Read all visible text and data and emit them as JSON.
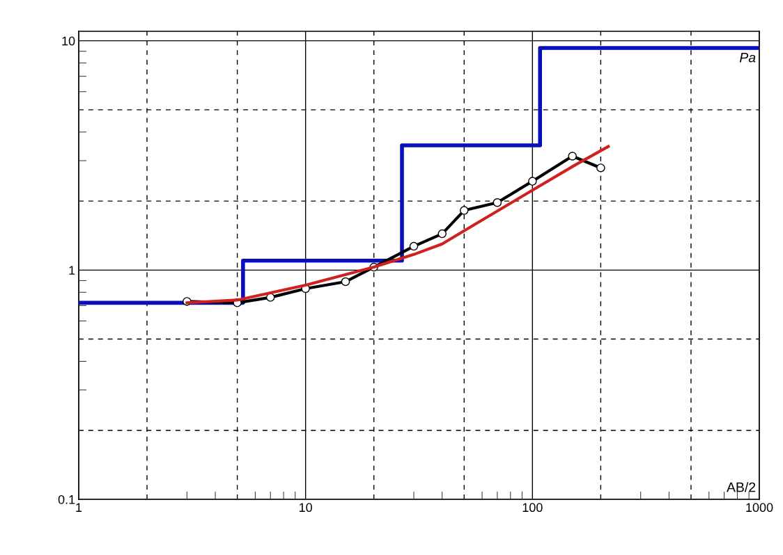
{
  "chart_data": {
    "type": "line",
    "xlabel": "AB/2",
    "ylabel": "Pa",
    "log": "xy",
    "grid": true,
    "xlim": [
      1,
      1000
    ],
    "xticks": [
      1,
      {
        "value": 2,
        "label": null
      },
      {
        "value": 5,
        "label": null
      },
      10,
      {
        "value": 20,
        "label": null
      },
      {
        "value": 50,
        "label": null
      },
      100,
      {
        "value": 200,
        "label": null
      },
      {
        "value": 500,
        "label": null
      },
      1000
    ],
    "ylim": [
      0.1,
      11
    ],
    "yticks": [
      0.1,
      {
        "value": 0.2,
        "label": null
      },
      {
        "value": 0.5,
        "label": null
      },
      1,
      {
        "value": 2,
        "label": null
      },
      {
        "value": 5,
        "label": null
      },
      10
    ],
    "series": [
      {
        "type": "step",
        "color": "#0a10b8",
        "x": [
          1,
          5.3,
          26.6,
          108,
          1000
        ],
        "values": [
          0.72,
          1.1,
          3.5,
          9.3,
          9.3
        ]
      },
      {
        "color": "#000000",
        "marker": "circle",
        "x": [
          3,
          5,
          7,
          10,
          15,
          20,
          30,
          40,
          50,
          70,
          100,
          150,
          200
        ],
        "values": [
          0.73,
          0.72,
          0.76,
          0.83,
          0.89,
          1.03,
          1.27,
          1.44,
          1.82,
          1.97,
          2.44,
          3.14,
          2.79
        ]
      },
      {
        "color": "#d02020",
        "x": [
          3,
          5,
          10,
          20,
          30,
          40,
          55,
          100,
          154,
          216
        ],
        "values": [
          0.72,
          0.74,
          0.86,
          1.03,
          1.17,
          1.3,
          1.57,
          2.23,
          2.87,
          3.46
        ]
      }
    ]
  }
}
